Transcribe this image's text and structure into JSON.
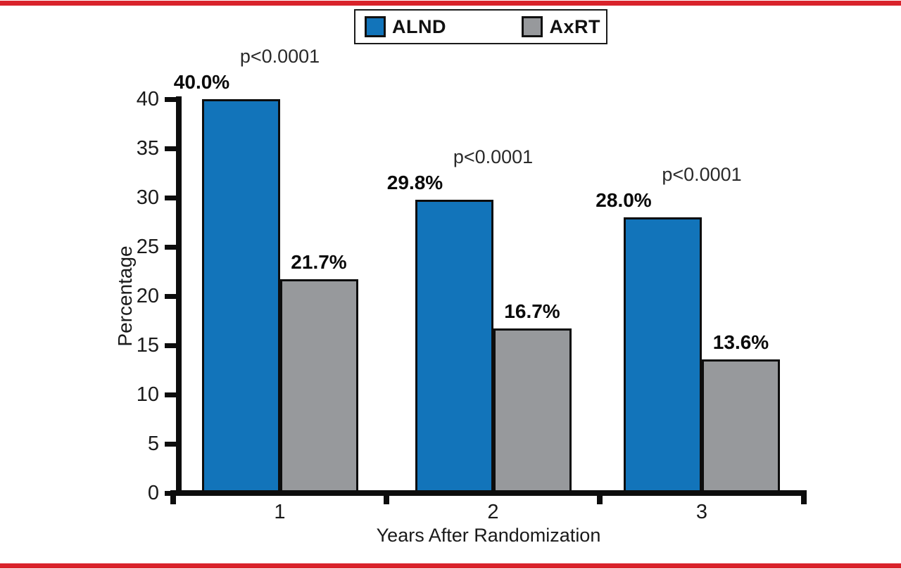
{
  "page": {
    "background": "#ffffff",
    "top_rule_color": "#D9232B",
    "bottom_rule_color": "#D9232B"
  },
  "legend": {
    "items": [
      {
        "label": "ALND",
        "color": "#1274BA"
      },
      {
        "label": "AxRT",
        "color": "#97999C"
      }
    ]
  },
  "chart_data": {
    "type": "bar",
    "title": "",
    "categories": [
      "1",
      "2",
      "3"
    ],
    "series": [
      {
        "name": "ALND",
        "color": "#1274BA",
        "values": [
          40.0,
          29.8,
          28.0
        ],
        "labels": [
          "40.0%",
          "29.8%",
          "28.0%"
        ]
      },
      {
        "name": "AxRT",
        "color": "#97999C",
        "values": [
          21.7,
          16.7,
          13.6
        ],
        "labels": [
          "21.7%",
          "16.7%",
          "13.6%"
        ]
      }
    ],
    "annotations": [
      "p<0.0001",
      "p<0.0001",
      "p<0.0001"
    ],
    "xlabel": "Years After Randomization",
    "ylabel": "Percentage",
    "ylim": [
      0,
      40
    ],
    "yticks": [
      0,
      5,
      10,
      15,
      20,
      25,
      30,
      35,
      40
    ],
    "grid": false,
    "legend_position": "top-center"
  }
}
